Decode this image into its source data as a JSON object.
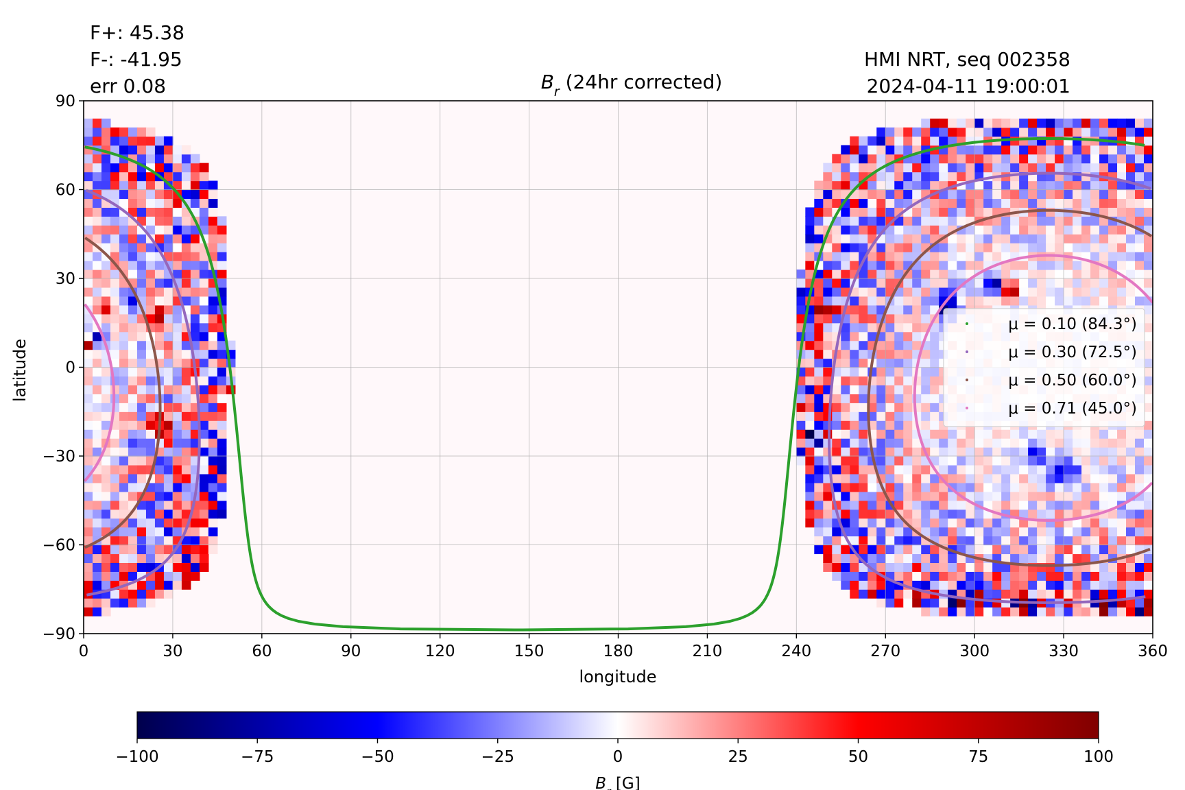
{
  "header": {
    "f_plus": "F+: 45.38",
    "f_minus": "F-: -41.95",
    "err": "err 0.08",
    "source": "HMI NRT, seq 002358",
    "timestamp": "2024-04-11 19:00:01"
  },
  "chart_data": {
    "type": "heatmap",
    "title_symbol": "B",
    "title_subscript": "r",
    "title_rest": " (24hr corrected)",
    "xlabel": "longitude",
    "ylabel": "latitude",
    "xlim": [
      0,
      360
    ],
    "ylim": [
      -90,
      90
    ],
    "xticks": [
      0,
      30,
      60,
      90,
      120,
      150,
      180,
      210,
      240,
      270,
      300,
      330,
      360
    ],
    "yticks": [
      90,
      60,
      30,
      0,
      -30,
      -60,
      -90
    ],
    "ytick_labels": [
      "90",
      "60",
      "30",
      "0",
      "−30",
      "−60",
      "−90"
    ],
    "grid": true,
    "disk_center": {
      "longitude": 325,
      "latitude": -7
    },
    "mu_contours": [
      {
        "label": "μ = 0.10 (84.3°)",
        "mu": 0.1,
        "angle_deg": 84.3,
        "color": "#2ca02c"
      },
      {
        "label": "μ = 0.30 (72.5°)",
        "mu": 0.3,
        "angle_deg": 72.5,
        "color": "#9467bd"
      },
      {
        "label": "μ = 0.50 (60.0°)",
        "mu": 0.5,
        "angle_deg": 60.0,
        "color": "#8c564b"
      },
      {
        "label": "μ = 0.71 (45.0°)",
        "mu": 0.71,
        "angle_deg": 45.0,
        "color": "#e377c2"
      }
    ],
    "legend_placement": "center-right",
    "colorbar": {
      "cmap": "seismic",
      "min": -100,
      "max": 100,
      "ticks": [
        -100,
        -75,
        -50,
        -25,
        0,
        25,
        50,
        75,
        100
      ],
      "tick_labels": [
        "−100",
        "−75",
        "−50",
        "−25",
        "0",
        "25",
        "50",
        "75",
        "100"
      ],
      "label_symbol": "B",
      "label_subscript": "r",
      "label_unit": " [G]"
    },
    "colors": {
      "neg_max": "#00004c",
      "neg_mid": "#0000ff",
      "zero": "#ffffff",
      "pos_mid": "#ff0000",
      "pos_max": "#800000",
      "background": "#fff8fa"
    }
  }
}
